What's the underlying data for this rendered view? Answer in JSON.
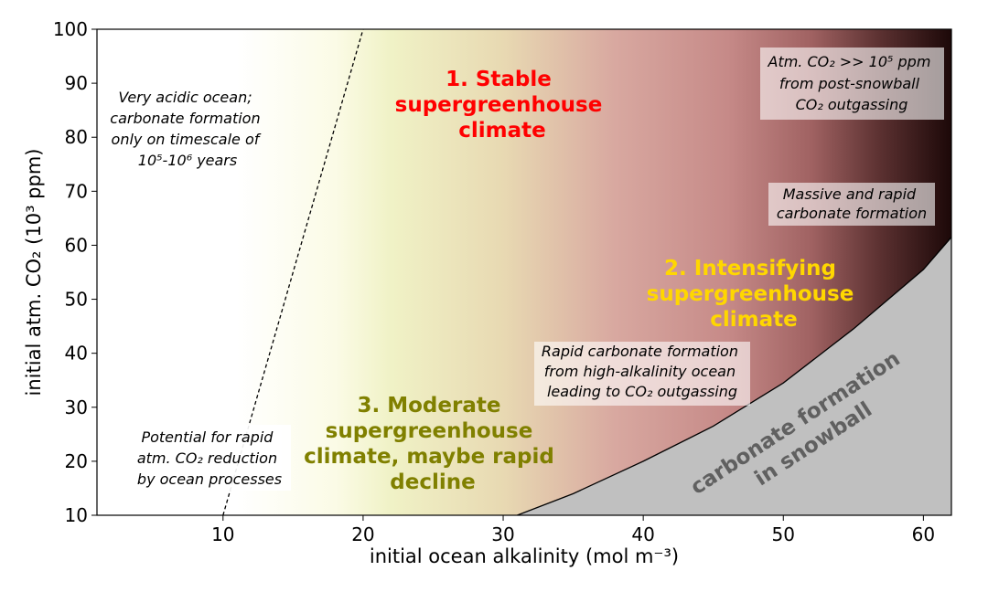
{
  "chart_data": {
    "type": "area",
    "title": "",
    "xlabel": "initial ocean alkalinity (mol m⁻³)",
    "ylabel": "initial atm. CO₂ (10³ ppm)",
    "xlim": [
      1,
      62
    ],
    "ylim": [
      10,
      100
    ],
    "xticks": [
      10,
      20,
      30,
      40,
      50,
      60
    ],
    "yticks": [
      10,
      20,
      30,
      40,
      50,
      60,
      70,
      80,
      90,
      100
    ],
    "grid": false,
    "legend": "none",
    "dashed_boundary": {
      "x": [
        10,
        20
      ],
      "y": [
        10,
        100
      ]
    },
    "snowball_boundary": {
      "x": [
        31,
        35,
        40,
        45,
        50,
        55,
        60,
        62
      ],
      "y": [
        10,
        14,
        20,
        26.5,
        34.5,
        44.5,
        55.5,
        61.5
      ]
    },
    "gradient_stops": [
      {
        "x": 11,
        "color": "#ffffff"
      },
      {
        "x": 18,
        "color": "#fbfbe6"
      },
      {
        "x": 22,
        "color": "#f0f2c6"
      },
      {
        "x": 30,
        "color": "#e8d9b2"
      },
      {
        "x": 38,
        "color": "#d8a8a0"
      },
      {
        "x": 46,
        "color": "#c68a88"
      },
      {
        "x": 52,
        "color": "#a06262"
      },
      {
        "x": 57,
        "color": "#5a3030"
      },
      {
        "x": 62,
        "color": "#1c0808"
      }
    ],
    "snowball_fill": "#c0c0c0",
    "regions": [
      {
        "lines": [
          "1. Stable",
          "supergreenhouse",
          "climate"
        ],
        "color": "#ff0000"
      },
      {
        "lines": [
          "2. Intensifying",
          "supergreenhouse",
          "climate"
        ],
        "color": "#ffd700"
      },
      {
        "lines": [
          "3. Moderate",
          "supergreenhouse",
          "climate, maybe rapid",
          "decline"
        ],
        "color": "#808000"
      }
    ],
    "snowball_label": [
      "carbonate formation",
      "in snowball"
    ],
    "snowball_label_color": "#606060",
    "annotations": {
      "acidic": [
        "Very acidic ocean;",
        "carbonate formation",
        "only on timescale of",
        "10⁵-10⁶ years"
      ],
      "potential": [
        "Potential for rapid",
        "atm. CO₂ reduction",
        "by ocean processes"
      ],
      "rapid": [
        "Rapid carbonate formation",
        "from high-alkalinity ocean",
        "leading to CO₂ outgassing"
      ],
      "massive": [
        "Massive and rapid",
        "carbonate formation"
      ],
      "atm": [
        "Atm. CO₂ >> 10⁵ ppm",
        "from post-snowball",
        "CO₂ outgassing"
      ]
    }
  }
}
